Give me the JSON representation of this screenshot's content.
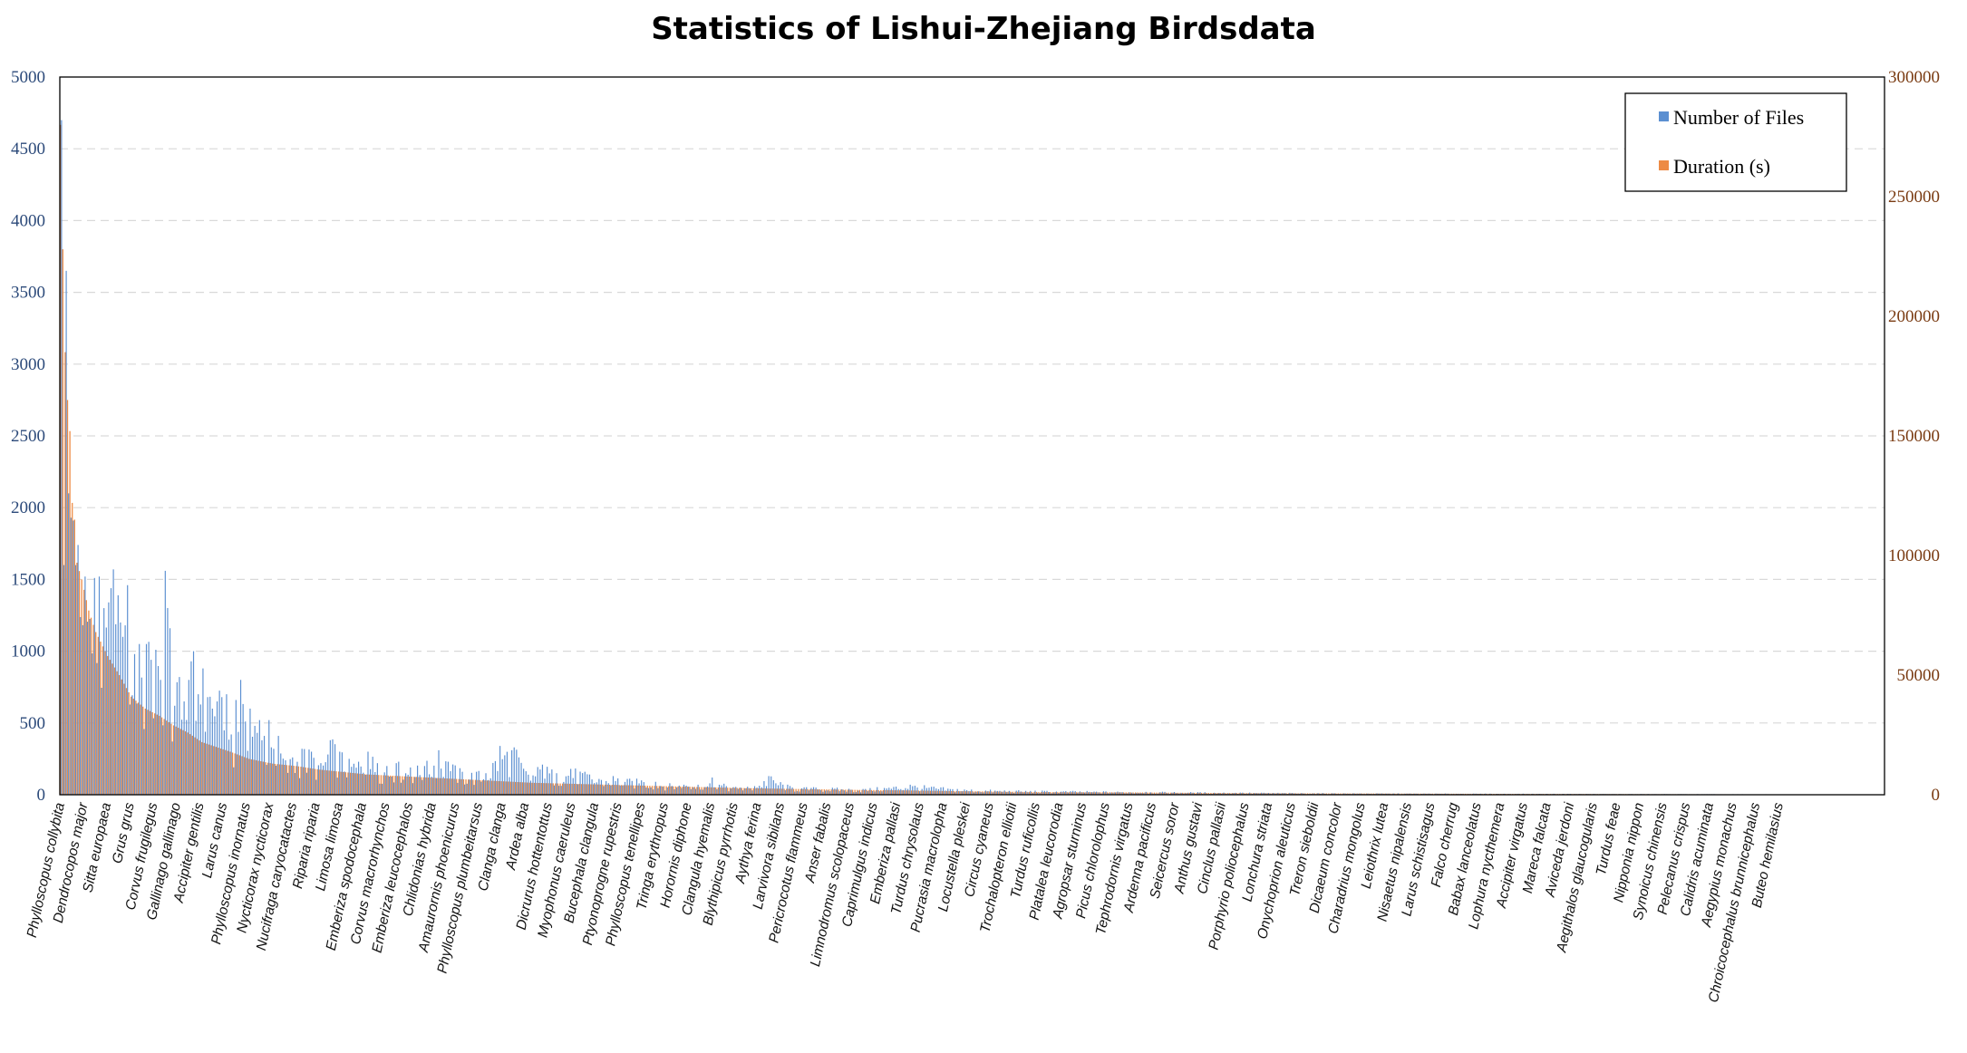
{
  "chart_data": {
    "type": "bar",
    "title": "Statistics of Lishui-Zhejiang Birdsdata",
    "legend_position": "top-right",
    "grid": true,
    "left_axis": {
      "min": 0,
      "max": 5000,
      "ticks": [
        0,
        500,
        1000,
        1500,
        2000,
        2500,
        3000,
        3500,
        4000,
        4500,
        5000
      ]
    },
    "right_axis": {
      "min": 0,
      "max": 300000,
      "ticks": [
        0,
        50000,
        100000,
        150000,
        200000,
        250000,
        300000
      ]
    },
    "colors": {
      "files": "#5b8fd1",
      "duration": "#ed8b45",
      "grid": "#d9d9d9"
    },
    "series": [
      {
        "name": "Number of Files",
        "axis": "left",
        "keypoints": [
          [
            0,
            4700
          ],
          [
            1,
            1600
          ],
          [
            2,
            3650
          ],
          [
            3,
            2100
          ],
          [
            4,
            1930
          ],
          [
            5,
            1910
          ],
          [
            6,
            1600
          ],
          [
            7,
            1740
          ],
          [
            10,
            1520
          ],
          [
            14,
            1510
          ],
          [
            16,
            1520
          ],
          [
            18,
            1300
          ],
          [
            20,
            1340
          ],
          [
            22,
            1570
          ],
          [
            25,
            1200
          ],
          [
            27,
            1180
          ],
          [
            28,
            1460
          ],
          [
            31,
            980
          ],
          [
            33,
            1050
          ],
          [
            36,
            1050
          ],
          [
            38,
            940
          ],
          [
            40,
            1010
          ],
          [
            42,
            800
          ],
          [
            44,
            1560
          ],
          [
            46,
            1160
          ],
          [
            48,
            620
          ],
          [
            50,
            820
          ],
          [
            52,
            650
          ],
          [
            54,
            800
          ],
          [
            56,
            1000
          ],
          [
            58,
            700
          ],
          [
            60,
            880
          ],
          [
            62,
            680
          ],
          [
            64,
            600
          ],
          [
            66,
            650
          ],
          [
            68,
            680
          ],
          [
            70,
            700
          ],
          [
            72,
            420
          ],
          [
            74,
            660
          ],
          [
            76,
            800
          ],
          [
            78,
            510
          ],
          [
            80,
            600
          ],
          [
            82,
            480
          ],
          [
            84,
            520
          ],
          [
            86,
            410
          ],
          [
            88,
            520
          ],
          [
            90,
            320
          ],
          [
            92,
            410
          ],
          [
            95,
            240
          ],
          [
            98,
            260
          ],
          [
            102,
            320
          ],
          [
            106,
            300
          ],
          [
            110,
            220
          ],
          [
            114,
            380
          ],
          [
            118,
            300
          ],
          [
            122,
            250
          ],
          [
            126,
            230
          ],
          [
            130,
            300
          ],
          [
            134,
            220
          ],
          [
            138,
            200
          ],
          [
            142,
            220
          ],
          [
            148,
            190
          ],
          [
            154,
            200
          ],
          [
            160,
            310
          ],
          [
            164,
            230
          ],
          [
            170,
            160
          ],
          [
            176,
            160
          ],
          [
            180,
            150
          ],
          [
            186,
            340
          ],
          [
            192,
            330
          ],
          [
            198,
            140
          ],
          [
            204,
            210
          ],
          [
            210,
            150
          ],
          [
            216,
            180
          ],
          [
            222,
            160
          ],
          [
            228,
            110
          ],
          [
            234,
            130
          ],
          [
            240,
            110
          ],
          [
            246,
            100
          ],
          [
            252,
            90
          ],
          [
            258,
            80
          ],
          [
            264,
            70
          ],
          [
            270,
            70
          ],
          [
            276,
            120
          ],
          [
            282,
            60
          ],
          [
            288,
            50
          ],
          [
            294,
            60
          ],
          [
            300,
            130
          ],
          [
            310,
            50
          ],
          [
            320,
            50
          ],
          [
            340,
            40
          ],
          [
            360,
            70
          ],
          [
            380,
            40
          ],
          [
            400,
            30
          ],
          [
            430,
            25
          ],
          [
            460,
            20
          ],
          [
            500,
            15
          ],
          [
            540,
            10
          ],
          [
            580,
            8
          ],
          [
            640,
            6
          ],
          [
            700,
            4
          ],
          [
            773,
            1
          ]
        ]
      },
      {
        "name": "Duration (s)",
        "axis": "right",
        "keypoints": [
          [
            0,
            280000
          ],
          [
            1,
            228000
          ],
          [
            2,
            185000
          ],
          [
            3,
            165000
          ],
          [
            4,
            152000
          ],
          [
            5,
            122000
          ],
          [
            6,
            115000
          ],
          [
            7,
            97000
          ],
          [
            9,
            90000
          ],
          [
            12,
            77000
          ],
          [
            15,
            68000
          ],
          [
            20,
            58000
          ],
          [
            25,
            50000
          ],
          [
            30,
            41000
          ],
          [
            36,
            36000
          ],
          [
            42,
            33000
          ],
          [
            48,
            29000
          ],
          [
            54,
            26000
          ],
          [
            60,
            22000
          ],
          [
            66,
            20000
          ],
          [
            72,
            18000
          ],
          [
            80,
            15000
          ],
          [
            90,
            13000
          ],
          [
            100,
            12000
          ],
          [
            110,
            10500
          ],
          [
            120,
            9500
          ],
          [
            130,
            8500
          ],
          [
            140,
            8000
          ],
          [
            150,
            7500
          ],
          [
            160,
            7000
          ],
          [
            170,
            6500
          ],
          [
            180,
            6000
          ],
          [
            190,
            5500
          ],
          [
            200,
            5000
          ],
          [
            220,
            4500
          ],
          [
            240,
            4000
          ],
          [
            260,
            3500
          ],
          [
            280,
            3000
          ],
          [
            300,
            2600
          ],
          [
            320,
            2300
          ],
          [
            340,
            2000
          ],
          [
            360,
            1800
          ],
          [
            380,
            1500
          ],
          [
            400,
            1300
          ],
          [
            420,
            1100
          ],
          [
            450,
            1000
          ],
          [
            480,
            800
          ],
          [
            520,
            600
          ],
          [
            560,
            500
          ],
          [
            600,
            400
          ],
          [
            650,
            300
          ],
          [
            700,
            200
          ],
          [
            773,
            100
          ]
        ]
      }
    ],
    "categories": [
      "Phylloscopus collybita",
      "Dendrocopos major",
      "Sitta europaea",
      "Grus grus",
      "Corvus frugilegus",
      "Gallinago gallinago",
      "Accipiter gentilis",
      "Larus canus",
      "Phylloscopus inornatus",
      "Nycticorax nycticorax",
      "Nucifraga caryocatactes",
      "Riparia riparia",
      "Limosa limosa",
      "Emberiza spodocephala",
      "Corvus macrorhynchos",
      "Emberiza leucocephalos",
      "Chlidonias hybrida",
      "Amaurornis phoenicurus",
      "Phylloscopus plumbeitarsus",
      "Clanga clanga",
      "Ardea alba",
      "Dicrurus hottentottus",
      "Myophonus caeruleus",
      "Bucephala clangula",
      "Ptyonoprogne rupestris",
      "Phylloscopus tenellipes",
      "Tringa erythropus",
      "Horornis diphone",
      "Clangula hyemalis",
      "Blythipicus pyrrhotis",
      "Aythya ferina",
      "Larvivora sibilans",
      "Pericrocotus flammeus",
      "Anser fabalis",
      "Limnodromus scolopaceus",
      "Caprimulgus indicus",
      "Emberiza pallasi",
      "Turdus chrysolaus",
      "Pucrasia macrolopha",
      "Locustella pleskei",
      "Circus cyaneus",
      "Trochalopteron elliotii",
      "Turdus ruficollis",
      "Platalea leucorodia",
      "Agropsar sturninus",
      "Picus chlorolophus",
      "Tephrodornis virgatus",
      "Ardenna pacificus",
      "Seicercus soror",
      "Anthus gustavi",
      "Cinclus pallasii",
      "Porphyrio poliocephalus",
      "Lonchura striata",
      "Onychoprion aleuticus",
      "Treron sieboldii",
      "Dicaeum concolor",
      "Charadrius mongolus",
      "Leiothrix lutea",
      "Nisaetus nipalensis",
      "Larus schistisagus",
      "Falco cherrug",
      "Babax lanceolatus",
      "Lophura nycthemera",
      "Accipiter virgatus",
      "Mareca falcata",
      "Aviceda jerdoni",
      "Aegithalos glaucogularis",
      "Turdus feae",
      "Nipponia nippon",
      "Synoicus chinensis",
      "Pelecanus crispus",
      "Calidris acuminata",
      "Aegypius monachus",
      "Chroicocephalus brunnicephalus",
      "Buteo hemilasius"
    ]
  }
}
